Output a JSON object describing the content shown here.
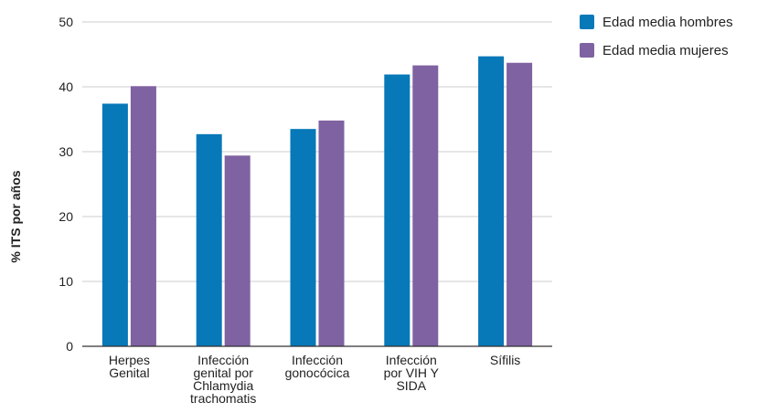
{
  "chart_data": {
    "type": "bar",
    "title": "",
    "xlabel": "",
    "ylabel": "% ITS por años",
    "ylim": [
      0,
      50
    ],
    "yticks": [
      0,
      10,
      20,
      30,
      40,
      50
    ],
    "grid": true,
    "legend_position": "top-right",
    "categories": [
      [
        "Herpes",
        "Genital"
      ],
      [
        "Infección",
        "genital por",
        "Chlamydia",
        "trachomatis"
      ],
      [
        "Infección",
        "gonocócica"
      ],
      [
        "Infección",
        "por VIH Y",
        "SIDA"
      ],
      [
        "Sífilis"
      ]
    ],
    "series": [
      {
        "name": "Edad media hombres",
        "color": "#0778b8",
        "values": [
          37.4,
          32.7,
          33.5,
          41.9,
          44.7
        ]
      },
      {
        "name": "Edad media mujeres",
        "color": "#7f62a1",
        "values": [
          40.1,
          29.4,
          34.8,
          43.3,
          43.7
        ]
      }
    ]
  }
}
